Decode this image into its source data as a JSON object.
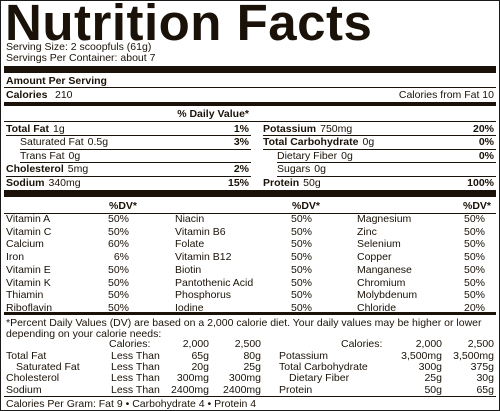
{
  "header": {
    "title": "Nutrition Facts",
    "serving_size": "Serving Size: 2 scoopfuls (61g)",
    "servings_per_container": "Servings Per Container: about 7"
  },
  "amount_per_serving": "Amount Per Serving",
  "calories": {
    "label": "Calories",
    "value": "210",
    "from_fat": "Calories from Fat 10"
  },
  "daily_value_header": "% Daily Value*",
  "nutrients": {
    "left": [
      {
        "name": "Total Fat",
        "amount": "1g",
        "dv": "1%"
      },
      {
        "name": "Saturated Fat",
        "amount": "0.5g",
        "dv": "3%"
      },
      {
        "name": "Trans Fat",
        "amount": "0g"
      },
      {
        "name": "Cholesterol",
        "amount": "5mg",
        "dv": "2%"
      },
      {
        "name": "Sodium",
        "amount": "340mg",
        "dv": "15%"
      }
    ],
    "right": [
      {
        "name": "Potassium",
        "amount": "750mg",
        "dv": "20%"
      },
      {
        "name": "Total Carbohydrate",
        "amount": "0g",
        "dv": "0%"
      },
      {
        "name": "Dietary Fiber",
        "amount": "0g",
        "dv": "0%"
      },
      {
        "name": "Sugars",
        "amount": "0g"
      },
      {
        "name": "Protein",
        "amount": "50g",
        "dv": "100%"
      }
    ]
  },
  "vitamins": {
    "header": "%DV*",
    "columns": [
      [
        {
          "name": "Vitamin A",
          "dv": "50%"
        },
        {
          "name": "Vitamin C",
          "dv": "50%"
        },
        {
          "name": "Calcium",
          "dv": "60%"
        },
        {
          "name": "Iron",
          "dv": "6%"
        },
        {
          "name": "Vitamin E",
          "dv": "50%"
        },
        {
          "name": "Vitamin K",
          "dv": "50%"
        },
        {
          "name": "Thiamin",
          "dv": "50%"
        },
        {
          "name": "Riboflavin",
          "dv": "50%"
        }
      ],
      [
        {
          "name": "Niacin",
          "dv": "50%"
        },
        {
          "name": "Vitamin B6",
          "dv": "50%"
        },
        {
          "name": "Folate",
          "dv": "50%"
        },
        {
          "name": "Vitamin B12",
          "dv": "50%"
        },
        {
          "name": "Biotin",
          "dv": "50%"
        },
        {
          "name": "Pantothenic Acid",
          "dv": "50%"
        },
        {
          "name": "Phosphorus",
          "dv": "50%"
        },
        {
          "name": "Iodine",
          "dv": "50%"
        }
      ],
      [
        {
          "name": "Magnesium",
          "dv": "50%"
        },
        {
          "name": "Zinc",
          "dv": "50%"
        },
        {
          "name": "Selenium",
          "dv": "50%"
        },
        {
          "name": "Copper",
          "dv": "50%"
        },
        {
          "name": "Manganese",
          "dv": "50%"
        },
        {
          "name": "Chromium",
          "dv": "50%"
        },
        {
          "name": "Molybdenum",
          "dv": "50%"
        },
        {
          "name": "Chloride",
          "dv": "20%"
        }
      ]
    ]
  },
  "footnote": [
    "*Percent Daily Values (DV) are based on a 2,000 calorie diet. Your daily values may be higher or lower",
    "depending on your calorie needs:"
  ],
  "reference": {
    "left": {
      "header": [
        "Calories:",
        "2,000",
        "2,500"
      ],
      "rows": [
        [
          "Total Fat",
          "Less Than",
          "65g",
          "80g"
        ],
        [
          "Saturated Fat",
          "Less Than",
          "20g",
          "25g"
        ],
        [
          "Cholesterol",
          "Less Than",
          "300mg",
          "300mg"
        ],
        [
          "Sodium",
          "Less Than",
          "2400mg",
          "2400mg"
        ]
      ]
    },
    "right": {
      "header": [
        "Calories:",
        "2,000",
        "2,500"
      ],
      "rows": [
        [
          "Potassium",
          "3,500mg",
          "3,500mg"
        ],
        [
          "Total Carbohydrate",
          "300g",
          "375g"
        ],
        [
          "Dietary Fiber",
          "25g",
          "30g"
        ],
        [
          "Protein",
          "50g",
          "65g"
        ]
      ]
    }
  },
  "footer": "Calories Per Gram: Fat 9 • Carbohydrate 4 • Protein 4"
}
